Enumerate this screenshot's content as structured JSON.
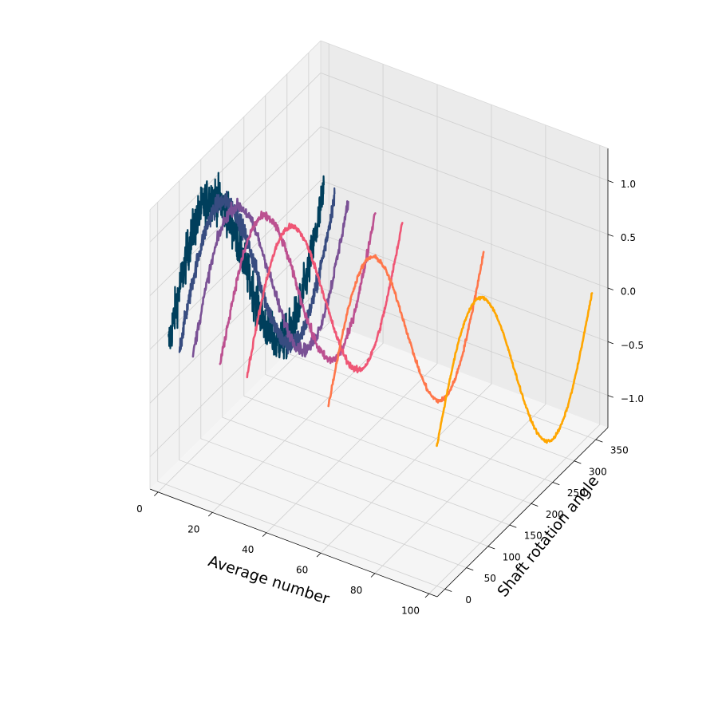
{
  "chart_data": {
    "type": "line",
    "projection": "3d",
    "title": "",
    "xlabel": "Average number",
    "ylabel": "Shaft rotation angle",
    "zlabel": "",
    "xlim": [
      -3,
      103
    ],
    "ylim": [
      -18,
      378
    ],
    "zlim": [
      -1.3,
      1.3
    ],
    "x_ticks": [
      "0",
      "20",
      "40",
      "60",
      "80",
      "100"
    ],
    "y_ticks": [
      "0",
      "50",
      "100",
      "150",
      "200",
      "250",
      "300",
      "350"
    ],
    "z_ticks": [
      "−1.0",
      "−0.5",
      "0.0",
      "0.5",
      "1.0"
    ],
    "grid": true,
    "series": [
      {
        "x": 1,
        "color": "#003f5c",
        "noise": 0.14,
        "phase_deg": 0,
        "amplitude": 1.0
      },
      {
        "x": 5,
        "color": "#374c80",
        "noise": 0.06,
        "phase_deg": 0,
        "amplitude": 1.0
      },
      {
        "x": 10,
        "color": "#7a5195",
        "noise": 0.04,
        "phase_deg": 0,
        "amplitude": 1.0
      },
      {
        "x": 20,
        "color": "#bc5090",
        "noise": 0.03,
        "phase_deg": 0,
        "amplitude": 1.0
      },
      {
        "x": 30,
        "color": "#ef5675",
        "noise": 0.02,
        "phase_deg": 0,
        "amplitude": 1.0
      },
      {
        "x": 60,
        "color": "#ff764a",
        "noise": 0.015,
        "phase_deg": 0,
        "amplitude": 1.0
      },
      {
        "x": 100,
        "color": "#ffa600",
        "noise": 0.01,
        "phase_deg": 0,
        "amplitude": 1.0
      }
    ],
    "y_range_deg": [
      0,
      360
    ],
    "wave": "sin"
  }
}
